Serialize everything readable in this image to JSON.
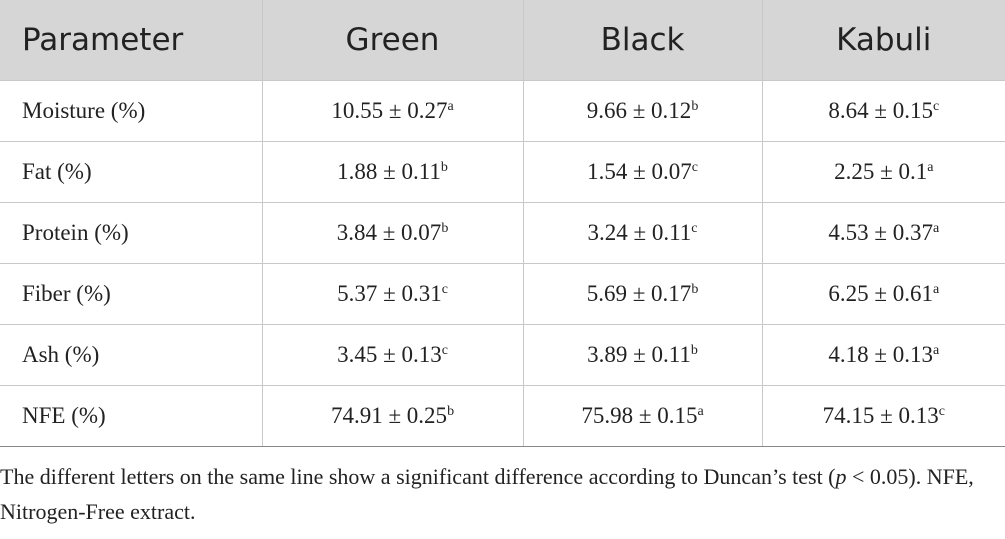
{
  "table": {
    "headers": [
      "Parameter",
      "Green",
      "Black",
      "Kabuli"
    ],
    "rows": [
      [
        {
          "text": "Moisture (%)"
        },
        {
          "text": "10.55 ± 0.27",
          "sup": "a"
        },
        {
          "text": "9.66 ± 0.12",
          "sup": "b"
        },
        {
          "text": "8.64 ± 0.15",
          "sup": "c"
        }
      ],
      [
        {
          "text": "Fat (%)"
        },
        {
          "text": "1.88 ± 0.11",
          "sup": "b"
        },
        {
          "text": "1.54 ± 0.07",
          "sup": "c"
        },
        {
          "text": "2.25 ± 0.1",
          "sup": "a"
        }
      ],
      [
        {
          "text": "Protein (%)"
        },
        {
          "text": "3.84 ± 0.07",
          "sup": "b"
        },
        {
          "text": "3.24 ± 0.11",
          "sup": "c"
        },
        {
          "text": "4.53 ± 0.37",
          "sup": "a"
        }
      ],
      [
        {
          "text": "Fiber (%)"
        },
        {
          "text": "5.37 ± 0.31",
          "sup": "c"
        },
        {
          "text": "5.69 ± 0.17",
          "sup": "b"
        },
        {
          "text": "6.25 ± 0.61",
          "sup": "a"
        }
      ],
      [
        {
          "text": "Ash (%)"
        },
        {
          "text": "3.45 ± 0.13",
          "sup": "c"
        },
        {
          "text": "3.89 ± 0.11",
          "sup": "b"
        },
        {
          "text": "4.18 ± 0.13",
          "sup": "a"
        }
      ],
      [
        {
          "text": "NFE (%)"
        },
        {
          "text": "74.91 ± 0.25",
          "sup": "b"
        },
        {
          "text": "75.98 ± 0.15",
          "sup": "a"
        },
        {
          "text": "74.15 ± 0.13",
          "sup": "c"
        }
      ]
    ]
  },
  "note": {
    "before": "The different letters on the same line show a significant difference according to Duncan’s test (",
    "italic": "p",
    "after": " < 0.05). NFE, Nitrogen-Free extract."
  }
}
